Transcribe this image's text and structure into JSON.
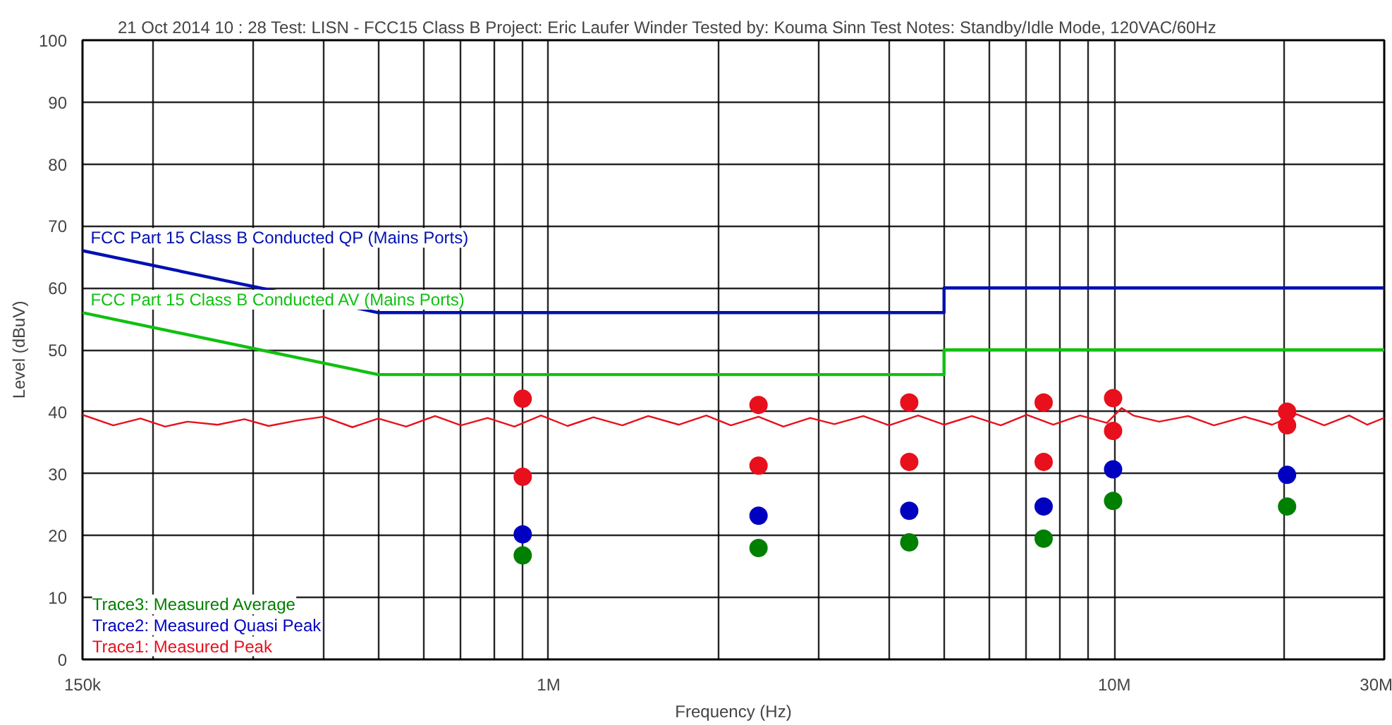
{
  "chart_data": {
    "type": "scatter",
    "title": "21 Oct 2014   10 : 28  Test: LISN - FCC15 Class B  Project: Eric Laufer Winder  Tested by: Kouma Sinn  Test Notes: Standby/Idle Mode, 120VAC/60Hz",
    "xlabel": "Frequency (Hz)",
    "ylabel": "Level (dBuV)",
    "log": "x",
    "grid": true,
    "legend": "bottom left",
    "marker": "circle",
    "xlim": [
      150000,
      30000000
    ],
    "ylim": [
      0,
      100
    ],
    "xticks": [
      {
        "value": 150000,
        "label": "150k"
      },
      {
        "value": 200000,
        "label": null
      },
      {
        "value": 300000,
        "label": null
      },
      {
        "value": 400000,
        "label": null
      },
      {
        "value": 500000,
        "label": null
      },
      {
        "value": 600000,
        "label": null
      },
      {
        "value": 700000,
        "label": null
      },
      {
        "value": 800000,
        "label": null
      },
      {
        "value": 900000,
        "label": null
      },
      {
        "value": 1000000,
        "label": "1M"
      },
      {
        "value": 2000000,
        "label": null
      },
      {
        "value": 3000000,
        "label": null
      },
      {
        "value": 4000000,
        "label": null
      },
      {
        "value": 5000000,
        "label": null
      },
      {
        "value": 6000000,
        "label": null
      },
      {
        "value": 7000000,
        "label": null
      },
      {
        "value": 8000000,
        "label": null
      },
      {
        "value": 9000000,
        "label": null
      },
      {
        "value": 10000000,
        "label": "10M"
      },
      {
        "value": 20000000,
        "label": null
      },
      {
        "value": 30000000,
        "label": "30M"
      }
    ],
    "yticks": [
      0,
      10,
      20,
      30,
      40,
      50,
      60,
      70,
      80,
      90,
      100
    ],
    "annotations": [
      {
        "text": "FCC Part 15 Class B Conducted QP (Mains Ports)",
        "x": 155000,
        "y": 66.5
      },
      {
        "text": "FCC Part 15 Class B Conducted AV (Mains Ports)",
        "x": 155000,
        "y": 56.5
      }
    ],
    "series": [
      {
        "name": "Trace3: Measured Average",
        "color": "#008000",
        "x": [
          900000,
          2350000,
          4340000,
          7500000,
          9950000,
          20200000
        ],
        "values": [
          16.8,
          18.0,
          18.9,
          19.5,
          25.6,
          24.7
        ]
      },
      {
        "name": "Trace2: Measured Quasi Peak",
        "color": "#0000c0",
        "x": [
          900000,
          2350000,
          4340000,
          7500000,
          9950000,
          20200000
        ],
        "values": [
          20.2,
          23.2,
          24.0,
          24.7,
          30.7,
          29.8
        ]
      },
      {
        "name": "Trace1: Measured Peak",
        "type": "line",
        "marker": "none",
        "color": "#e8101c",
        "x": [
          150000,
          170000,
          190000,
          210000,
          230000,
          260000,
          290000,
          320000,
          360000,
          400000,
          450000,
          500000,
          560000,
          630000,
          700000,
          780000,
          870000,
          970000,
          1080000,
          1200000,
          1350000,
          1500000,
          1700000,
          1900000,
          2100000,
          2350000,
          2600000,
          2900000,
          3200000,
          3600000,
          4000000,
          4500000,
          5000000,
          5600000,
          6300000,
          7000000,
          7800000,
          8700000,
          9700000,
          10300000,
          10800000,
          12000000,
          13500000,
          15000000,
          17000000,
          19000000,
          21000000,
          23500000,
          26000000,
          28000000,
          30000000
        ],
        "values": [
          39.5,
          37.8,
          38.9,
          37.6,
          38.4,
          37.9,
          38.8,
          37.7,
          38.6,
          39.2,
          37.5,
          38.9,
          37.6,
          39.3,
          37.8,
          39.0,
          37.6,
          39.4,
          37.7,
          39.1,
          37.8,
          39.3,
          37.9,
          39.4,
          37.8,
          39.2,
          37.6,
          39.0,
          38.0,
          39.3,
          37.8,
          39.4,
          37.9,
          39.3,
          37.8,
          39.5,
          37.9,
          39.4,
          38.2,
          40.6,
          39.4,
          38.4,
          39.3,
          37.8,
          39.2,
          37.9,
          39.6,
          37.8,
          39.4,
          37.9,
          39.0
        ]
      },
      {
        "color": "#e8101c",
        "x": [
          900000,
          2350000,
          4340000,
          7500000,
          9950000,
          20200000
        ],
        "values": [
          29.5,
          31.3,
          31.9,
          31.9,
          36.9,
          37.8
        ]
      },
      {
        "color": "#e8101c",
        "x": [
          900000,
          2350000,
          4340000,
          7500000,
          9950000,
          20200000
        ],
        "values": [
          42.1,
          41.1,
          41.5,
          41.5,
          42.2,
          40.0
        ]
      },
      {
        "type": "line",
        "marker": "none",
        "color": "#0010b0",
        "x": [
          150000,
          500000,
          5000000,
          5000000,
          30000000
        ],
        "values": [
          66,
          56,
          56,
          60,
          60
        ]
      },
      {
        "type": "line",
        "marker": "none",
        "color": "#10c010",
        "x": [
          150000,
          500000,
          5000000,
          5000000,
          30000000
        ],
        "values": [
          56,
          46,
          46,
          50,
          50
        ]
      }
    ]
  }
}
